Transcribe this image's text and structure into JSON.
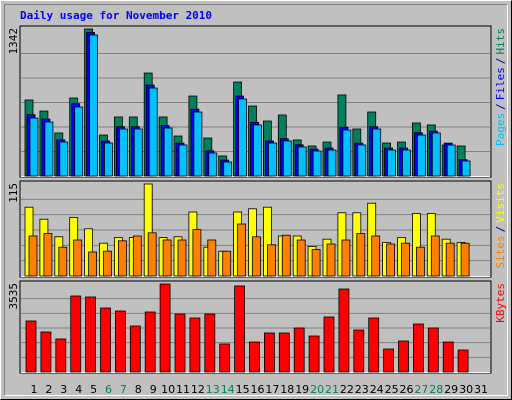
{
  "title": "Daily usage for November 2010",
  "chart_data": [
    {
      "type": "bar",
      "ylim": [
        0,
        1342
      ],
      "yticks": [
        1342
      ],
      "legend_separator": "/",
      "grid": true,
      "series": [
        {
          "name": "Hits",
          "color": "#00805c",
          "values": [
            694,
            593,
            393,
            712,
            1342,
            374,
            539,
            539,
            940,
            539,
            365,
            730,
            347,
            183,
            858,
            639,
            502,
            557,
            329,
            274,
            310,
            740,
            429,
            584,
            301,
            310,
            484,
            466,
            283,
            274,
            null
          ]
        },
        {
          "name": "Files",
          "color": "#0000ff",
          "values": [
            560,
            520,
            330,
            660,
            1310,
            320,
            450,
            450,
            830,
            460,
            300,
            610,
            230,
            145,
            730,
            490,
            320,
            340,
            285,
            245,
            255,
            445,
            300,
            450,
            255,
            255,
            395,
            410,
            300,
            150,
            null
          ]
        },
        {
          "name": "Pages",
          "color": "#00c0ff",
          "values": [
            529,
            493,
            310,
            630,
            1287,
            301,
            429,
            429,
            803,
            438,
            283,
            584,
            210,
            128,
            703,
            466,
            301,
            320,
            265,
            228,
            237,
            420,
            283,
            429,
            237,
            237,
            374,
            393,
            283,
            137,
            null
          ]
        }
      ]
    },
    {
      "type": "bar",
      "ylim": [
        0,
        115
      ],
      "yticks": [
        115
      ],
      "legend_separator": "/",
      "grid": true,
      "series": [
        {
          "name": "Visits",
          "color": "#ffff00",
          "values": [
            86,
            71,
            49,
            73,
            59,
            41,
            48,
            48,
            115,
            48,
            49,
            80,
            36,
            31,
            80,
            84,
            86,
            50,
            50,
            37,
            46,
            79,
            79,
            91,
            42,
            48,
            78,
            78,
            46,
            42,
            null
          ]
        },
        {
          "name": "Sites",
          "color": "#ff8000",
          "values": [
            50,
            53,
            36,
            45,
            30,
            31,
            44,
            50,
            54,
            45,
            45,
            58,
            45,
            31,
            65,
            49,
            39,
            51,
            45,
            33,
            40,
            45,
            53,
            50,
            40,
            41,
            36,
            50,
            41,
            41,
            null
          ]
        }
      ]
    },
    {
      "type": "bar",
      "ylim": [
        0,
        3535
      ],
      "yticks": [
        3535
      ],
      "grid": true,
      "categories": [
        1,
        2,
        3,
        4,
        5,
        6,
        7,
        8,
        9,
        10,
        11,
        12,
        13,
        14,
        15,
        16,
        17,
        18,
        19,
        20,
        21,
        22,
        23,
        24,
        25,
        26,
        27,
        28,
        29,
        30,
        31
      ],
      "category_colors": [
        "#000000",
        "#000000",
        "#000000",
        "#000000",
        "#000000",
        "#00805c",
        "#00805c",
        "#000000",
        "#000000",
        "#000000",
        "#000000",
        "#000000",
        "#00805c",
        "#00805c",
        "#000000",
        "#000000",
        "#000000",
        "#000000",
        "#000000",
        "#00805c",
        "#00805c",
        "#000000",
        "#000000",
        "#000000",
        "#000000",
        "#000000",
        "#00805c",
        "#00805c",
        "#000000",
        "#000000",
        "#000000"
      ],
      "series": [
        {
          "name": "KBytes",
          "color": "#ff0000",
          "values": [
            2049,
            1607,
            1326,
            3053,
            3013,
            2571,
            2450,
            1848,
            2410,
            3535,
            2330,
            2169,
            2330,
            1125,
            3455,
            1205,
            1567,
            1567,
            1768,
            1446,
            2209,
            3334,
            1687,
            2169,
            924,
            1245,
            1928,
            1768,
            1205,
            884,
            null
          ]
        }
      ]
    }
  ]
}
